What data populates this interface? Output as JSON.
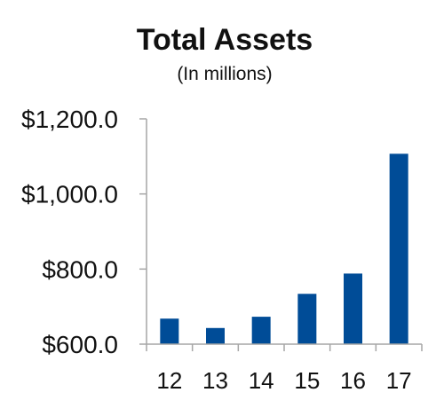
{
  "chart_data": {
    "type": "bar",
    "title": "Total Assets",
    "subtitle": "(In millions)",
    "categories": [
      "12",
      "13",
      "14",
      "15",
      "16",
      "17"
    ],
    "values": [
      668,
      643,
      673,
      734,
      788,
      1107
    ],
    "ylim": [
      600,
      1200
    ],
    "yticks": [
      600,
      800,
      1000,
      1200
    ],
    "ytick_labels": [
      "$600.0",
      "$800.0",
      "$1,000.0",
      "$1,200.0"
    ],
    "bar_color": "#004C97",
    "axis_color": "#A6A6A6",
    "grid": false,
    "legend": "none"
  }
}
